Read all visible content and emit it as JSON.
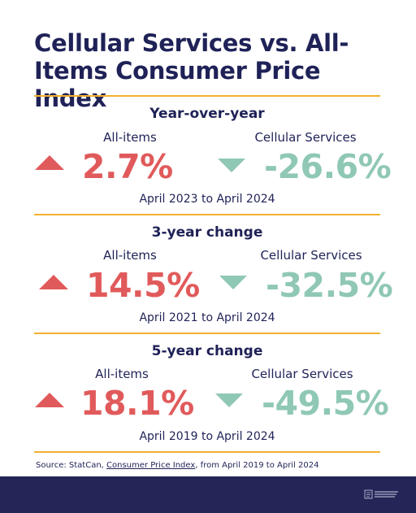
{
  "title": "Cellular Services vs. All-Items Consumer Price Index",
  "sections": [
    {
      "heading": "Year-over-year",
      "left_label": "All-items",
      "left_value": "2.7%",
      "right_label": "Cellular Services",
      "right_value": "-26.6%",
      "period": "April 2023 to April 2024"
    },
    {
      "heading": "3-year change",
      "left_label": "All-items",
      "left_value": "14.5%",
      "right_label": "Cellular Services",
      "right_value": "-32.5%",
      "period": "April 2021 to April 2024"
    },
    {
      "heading": "5-year change",
      "left_label": "All-items",
      "left_value": "18.1%",
      "right_label": "Cellular Services",
      "right_value": "-49.5%",
      "period": "April 2019 to April 2024"
    }
  ],
  "source": {
    "prefix": "Source: StatCan, ",
    "link_text": "Consumer Price Index",
    "suffix": ", from April 2019 to April 2024"
  },
  "colors": {
    "title": "#1f2257",
    "rule": "#f3b02e",
    "increase": "#e15a5b",
    "decrease": "#8fc8b4",
    "footer": "#242658"
  },
  "icons": {
    "increase": "triangle-up-icon",
    "decrease": "triangle-down-icon",
    "footer_logo": "logo-icon"
  }
}
